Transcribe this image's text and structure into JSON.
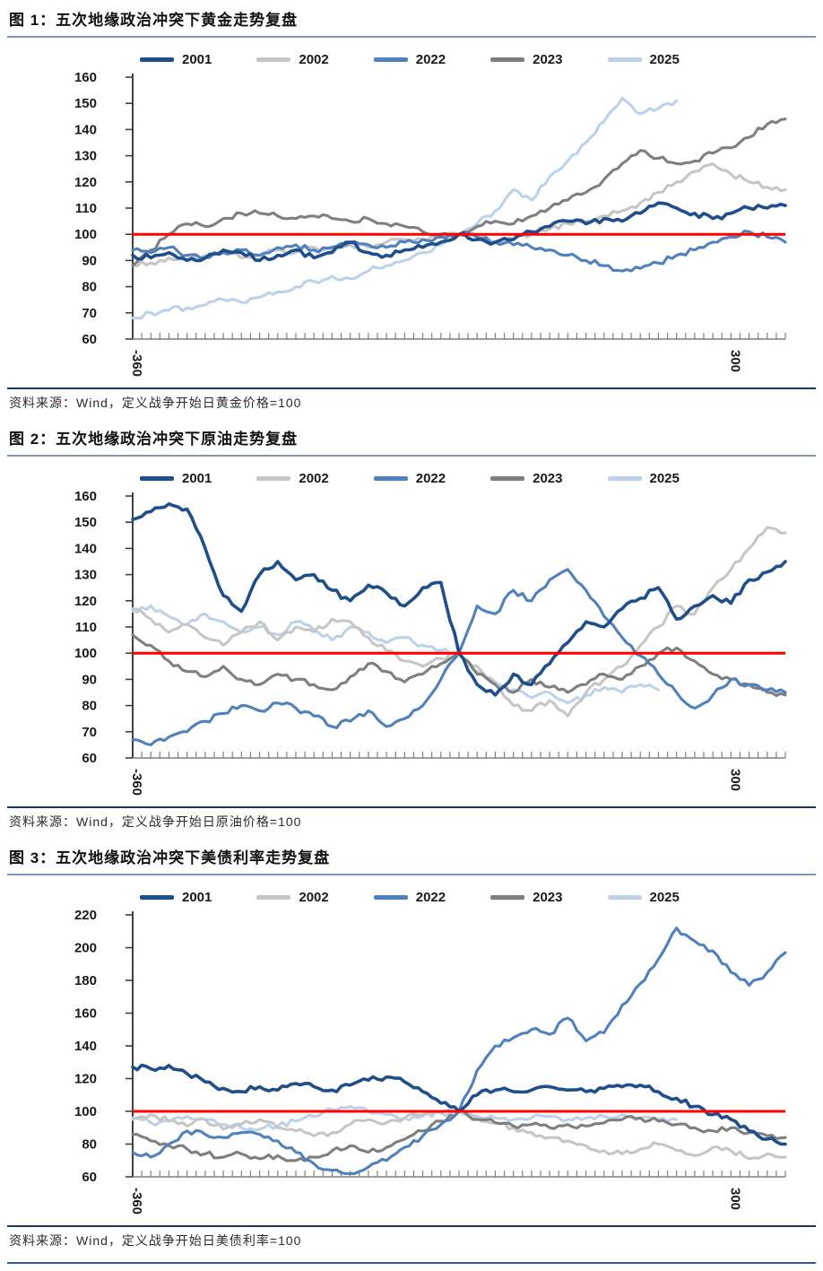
{
  "chart_data": [
    {
      "type": "line",
      "title": "图 1：五次地缘政治冲突下黄金走势复盘",
      "source_note": "资料来源：Wind，定义战争开始日黄金价格=100",
      "xlabel": "",
      "ylabel": "",
      "x_range": [
        -360,
        360
      ],
      "x_axis_tick_labels": [
        -360,
        300
      ],
      "ylim": [
        60,
        160
      ],
      "ytick_step": 10,
      "grid": false,
      "legend_position": "top",
      "baseline": {
        "value": 100,
        "color": "#fe0000"
      },
      "axis_color": "#404040",
      "series": [
        {
          "name": "2001",
          "color": "#1f4e8c",
          "x_start": -360,
          "x_step": 20,
          "values": [
            92,
            91,
            93,
            90,
            91,
            94,
            93,
            90,
            92,
            94,
            91,
            93,
            97,
            93,
            92,
            94,
            95,
            97,
            100,
            98,
            97,
            98,
            101,
            103,
            105,
            104,
            106,
            105,
            108,
            112,
            110,
            108,
            106,
            108,
            110,
            110,
            111
          ]
        },
        {
          "name": "2002",
          "color": "#c6c6c6",
          "x_start": -360,
          "x_step": 20,
          "values": [
            88,
            89,
            91,
            90,
            92,
            93,
            91,
            92,
            94,
            93,
            95,
            94,
            96,
            95,
            97,
            98,
            98,
            99,
            100,
            99,
            97,
            98,
            100,
            102,
            104,
            105,
            107,
            109,
            112,
            116,
            120,
            124,
            127,
            123,
            120,
            118,
            117
          ]
        },
        {
          "name": "2022",
          "color": "#4e81bd",
          "x_start": -360,
          "x_step": 20,
          "values": [
            94,
            93,
            95,
            92,
            91,
            93,
            94,
            92,
            95,
            96,
            94,
            95,
            97,
            96,
            95,
            97,
            98,
            99,
            100,
            99,
            97,
            96,
            95,
            94,
            92,
            90,
            88,
            86,
            87,
            89,
            92,
            94,
            97,
            99,
            101,
            99,
            97
          ]
        },
        {
          "name": "2023",
          "color": "#7f7f7f",
          "x_start": -360,
          "x_step": 20,
          "values": [
            88,
            94,
            100,
            104,
            103,
            106,
            108,
            108,
            107,
            106,
            107,
            106,
            105,
            106,
            104,
            103,
            101,
            100,
            100,
            103,
            105,
            104,
            107,
            110,
            113,
            116,
            121,
            127,
            132,
            129,
            127,
            128,
            131,
            133,
            137,
            142,
            144
          ]
        },
        {
          "name": "2025",
          "color": "#bdd2e8",
          "x_start": -360,
          "x_step": 20,
          "values": [
            68,
            70,
            71,
            72,
            73,
            75,
            74,
            76,
            78,
            80,
            82,
            84,
            83,
            86,
            88,
            90,
            93,
            96,
            100,
            104,
            109,
            117,
            113,
            122,
            128,
            135,
            143,
            152,
            146,
            148,
            151
          ]
        }
      ]
    },
    {
      "type": "line",
      "title": "图 2：五次地缘政治冲突下原油走势复盘",
      "source_note": "资料来源：Wind，定义战争开始日原油价格=100",
      "xlabel": "",
      "ylabel": "",
      "x_range": [
        -360,
        360
      ],
      "x_axis_tick_labels": [
        -360,
        300
      ],
      "ylim": [
        60,
        160
      ],
      "ytick_step": 10,
      "grid": false,
      "legend_position": "top",
      "baseline": {
        "value": 100,
        "color": "#fe0000"
      },
      "axis_color": "#404040",
      "series": [
        {
          "name": "2001",
          "color": "#1f4e8c",
          "x_start": -360,
          "x_step": 20,
          "values": [
            151,
            154,
            157,
            155,
            140,
            122,
            116,
            130,
            135,
            128,
            130,
            124,
            120,
            126,
            123,
            118,
            125,
            127,
            100,
            88,
            84,
            92,
            88,
            96,
            104,
            112,
            110,
            117,
            121,
            125,
            113,
            118,
            122,
            119,
            128,
            131,
            135
          ]
        },
        {
          "name": "2002",
          "color": "#c6c6c6",
          "x_start": -360,
          "x_step": 20,
          "values": [
            117,
            113,
            108,
            111,
            106,
            103,
            108,
            112,
            105,
            110,
            108,
            113,
            112,
            106,
            101,
            97,
            95,
            98,
            100,
            95,
            88,
            80,
            78,
            82,
            76,
            85,
            90,
            95,
            103,
            110,
            118,
            115,
            125,
            132,
            140,
            148,
            146
          ]
        },
        {
          "name": "2022",
          "color": "#4e81bd",
          "x_start": -360,
          "x_step": 20,
          "values": [
            67,
            65,
            68,
            70,
            74,
            77,
            80,
            78,
            81,
            79,
            76,
            72,
            74,
            78,
            72,
            75,
            80,
            90,
            100,
            118,
            115,
            124,
            120,
            128,
            132,
            124,
            114,
            106,
            99,
            92,
            85,
            79,
            84,
            90,
            88,
            86,
            85
          ]
        },
        {
          "name": "2023",
          "color": "#7f7f7f",
          "x_start": -360,
          "x_step": 20,
          "values": [
            107,
            103,
            97,
            93,
            91,
            95,
            90,
            88,
            92,
            90,
            88,
            86,
            91,
            96,
            93,
            89,
            92,
            96,
            100,
            92,
            88,
            85,
            90,
            87,
            85,
            88,
            92,
            90,
            95,
            100,
            102,
            97,
            92,
            90,
            88,
            85,
            84
          ]
        },
        {
          "name": "2025",
          "color": "#bdd2e8",
          "x_start": -360,
          "x_step": 20,
          "values": [
            116,
            118,
            114,
            111,
            115,
            112,
            108,
            110,
            107,
            112,
            109,
            105,
            110,
            108,
            104,
            106,
            103,
            101,
            100,
            93,
            89,
            86,
            83,
            85,
            81,
            84,
            87,
            85,
            88,
            86
          ]
        }
      ]
    },
    {
      "type": "line",
      "title": "图 3：五次地缘政治冲突下美债利率走势复盘",
      "source_note": "资料来源：Wind，定义战争开始日美债利率=100",
      "xlabel": "",
      "ylabel": "",
      "x_range": [
        -360,
        360
      ],
      "x_axis_tick_labels": [
        -360,
        300
      ],
      "ylim": [
        60,
        220
      ],
      "ytick_step": 20,
      "grid": false,
      "legend_position": "top",
      "baseline": {
        "value": 100,
        "color": "#fe0000"
      },
      "axis_color": "#404040",
      "series": [
        {
          "name": "2001",
          "color": "#1f4e8c",
          "x_start": -360,
          "x_step": 20,
          "values": [
            127,
            126,
            128,
            123,
            118,
            114,
            112,
            115,
            113,
            117,
            115,
            113,
            116,
            119,
            121,
            118,
            112,
            105,
            100,
            110,
            113,
            112,
            113,
            115,
            113,
            112,
            114,
            115,
            116,
            112,
            108,
            103,
            98,
            95,
            88,
            83,
            80
          ]
        },
        {
          "name": "2002",
          "color": "#c6c6c6",
          "x_start": -360,
          "x_step": 20,
          "values": [
            95,
            98,
            94,
            91,
            95,
            89,
            92,
            95,
            90,
            88,
            85,
            87,
            92,
            95,
            93,
            96,
            98,
            99,
            100,
            96,
            93,
            90,
            87,
            84,
            82,
            79,
            76,
            74,
            77,
            80,
            76,
            73,
            78,
            76,
            71,
            74,
            72
          ]
        },
        {
          "name": "2022",
          "color": "#4e81bd",
          "x_start": -360,
          "x_step": 20,
          "values": [
            75,
            72,
            80,
            88,
            86,
            84,
            87,
            86,
            82,
            75,
            68,
            64,
            62,
            66,
            70,
            78,
            85,
            92,
            100,
            125,
            140,
            145,
            150,
            147,
            157,
            143,
            148,
            165,
            178,
            193,
            212,
            204,
            198,
            185,
            177,
            185,
            197
          ]
        },
        {
          "name": "2023",
          "color": "#7f7f7f",
          "x_start": -360,
          "x_step": 20,
          "values": [
            86,
            82,
            79,
            77,
            74,
            72,
            74,
            71,
            73,
            70,
            72,
            76,
            79,
            75,
            78,
            83,
            88,
            94,
            100,
            95,
            93,
            91,
            92,
            90,
            92,
            91,
            93,
            95,
            96,
            94,
            92,
            90,
            88,
            90,
            87,
            85,
            84
          ]
        },
        {
          "name": "2025",
          "color": "#bdd2e8",
          "x_start": -360,
          "x_step": 20,
          "values": [
            96,
            93,
            94,
            97,
            95,
            92,
            90,
            89,
            91,
            94,
            97,
            101,
            103,
            100,
            98,
            96,
            97,
            99,
            100,
            97,
            96,
            95,
            96,
            97,
            95,
            96,
            97,
            98,
            96,
            95,
            95
          ]
        }
      ]
    }
  ]
}
